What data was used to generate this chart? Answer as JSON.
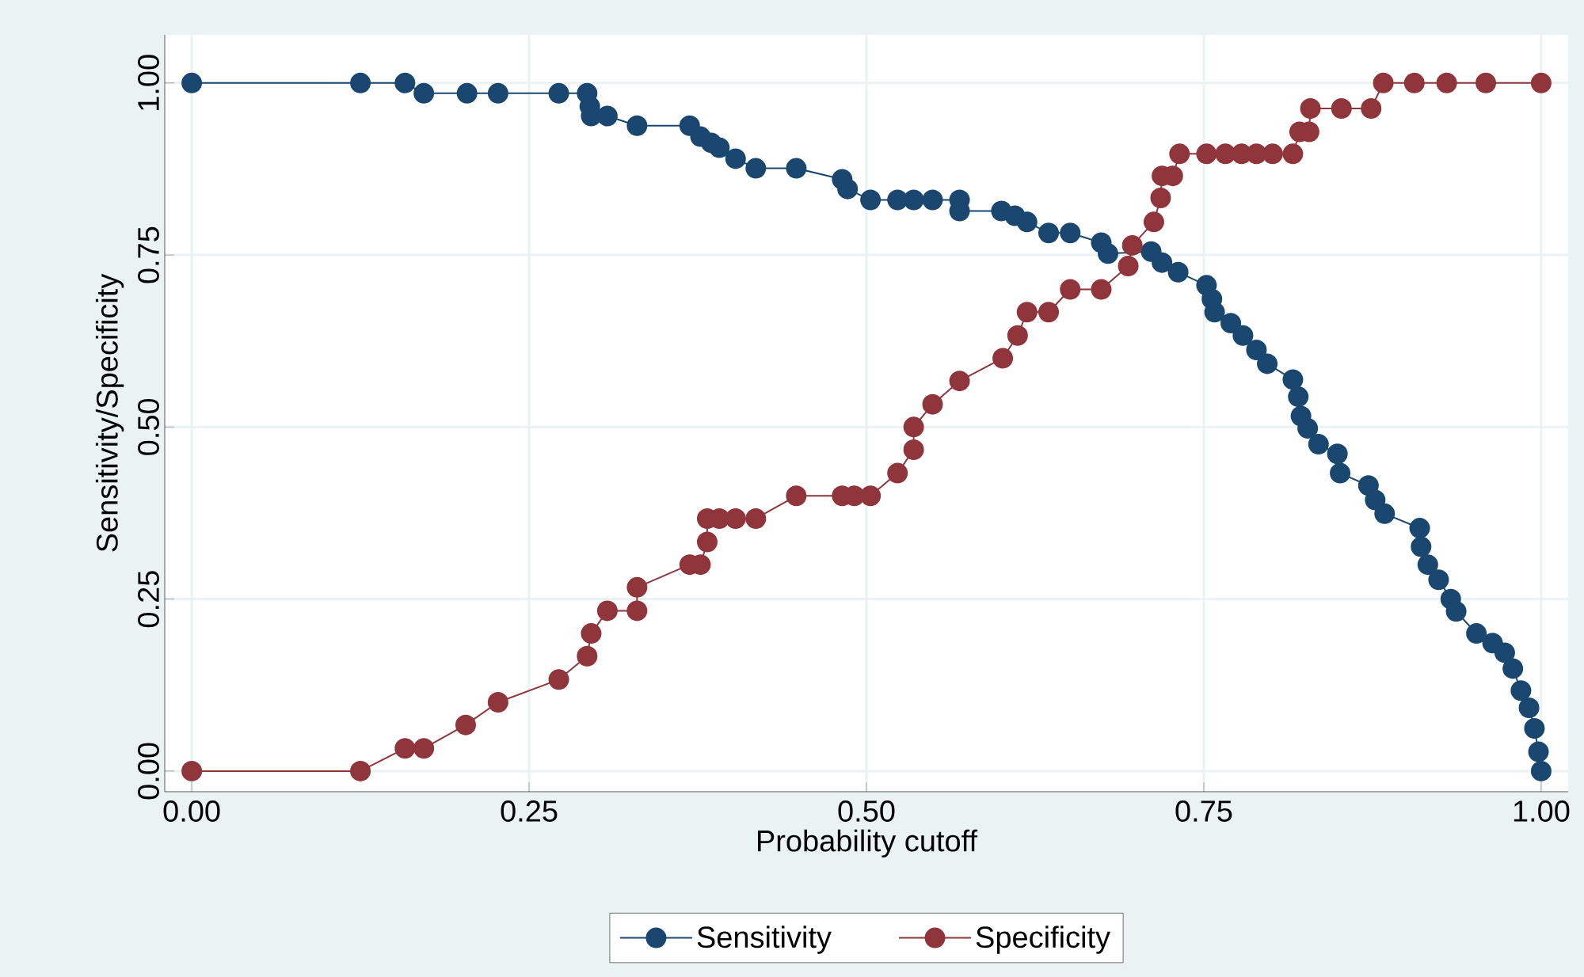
{
  "chart_data": {
    "type": "line",
    "xlabel": "Probability cutoff",
    "ylabel": "Sensitivity/Specificity",
    "xlim": [
      -0.02,
      1.02
    ],
    "ylim": [
      -0.03,
      1.07
    ],
    "xticks": [
      {
        "value": 0,
        "label": "0.00"
      },
      {
        "value": 0.25,
        "label": "0.25"
      },
      {
        "value": 0.5,
        "label": "0.50"
      },
      {
        "value": 0.75,
        "label": "0.75"
      },
      {
        "value": 1,
        "label": "1.00"
      }
    ],
    "yticks": [
      {
        "value": 0,
        "label": "0.00"
      },
      {
        "value": 0.25,
        "label": "0.25"
      },
      {
        "value": 0.5,
        "label": "0.50"
      },
      {
        "value": 0.75,
        "label": "0.75"
      },
      {
        "value": 1,
        "label": "1.00"
      }
    ],
    "grid": true,
    "legend": "bottom",
    "marker": "circle",
    "line_style": "solid",
    "series": [
      {
        "name": "Sensitivity",
        "color": "#1a476f",
        "x": [
          0,
          0.125,
          0.158,
          0.172,
          0.204,
          0.227,
          0.272,
          0.293,
          0.295,
          0.296,
          0.308,
          0.33,
          0.369,
          0.377,
          0.385,
          0.391,
          0.403,
          0.418,
          0.448,
          0.482,
          0.486,
          0.503,
          0.523,
          0.535,
          0.549,
          0.569,
          0.569,
          0.6,
          0.61,
          0.619,
          0.635,
          0.651,
          0.674,
          0.679,
          0.711,
          0.719,
          0.731,
          0.752,
          0.756,
          0.758,
          0.77,
          0.779,
          0.789,
          0.797,
          0.816,
          0.82,
          0.822,
          0.827,
          0.835,
          0.849,
          0.851,
          0.872,
          0.877,
          0.884,
          0.91,
          0.911,
          0.916,
          0.924,
          0.933,
          0.937,
          0.952,
          0.964,
          0.973,
          0.979,
          0.985,
          0.991,
          0.995,
          0.998,
          1.0
        ],
        "values": [
          1.0,
          1.0,
          1.0,
          0.985,
          0.985,
          0.985,
          0.985,
          0.985,
          0.966,
          0.952,
          0.952,
          0.938,
          0.938,
          0.922,
          0.913,
          0.906,
          0.89,
          0.876,
          0.876,
          0.86,
          0.846,
          0.83,
          0.83,
          0.83,
          0.83,
          0.83,
          0.814,
          0.814,
          0.807,
          0.798,
          0.782,
          0.782,
          0.768,
          0.752,
          0.755,
          0.739,
          0.725,
          0.706,
          0.686,
          0.667,
          0.651,
          0.633,
          0.612,
          0.592,
          0.569,
          0.544,
          0.516,
          0.498,
          0.475,
          0.461,
          0.433,
          0.415,
          0.394,
          0.374,
          0.353,
          0.326,
          0.3,
          0.278,
          0.25,
          0.232,
          0.2,
          0.186,
          0.172,
          0.149,
          0.117,
          0.092,
          0.062,
          0.028,
          0.0
        ]
      },
      {
        "name": "Specificity",
        "color": "#90353b",
        "x": [
          0,
          0.125,
          0.158,
          0.172,
          0.203,
          0.227,
          0.272,
          0.293,
          0.296,
          0.308,
          0.33,
          0.33,
          0.369,
          0.377,
          0.382,
          0.382,
          0.391,
          0.403,
          0.418,
          0.448,
          0.482,
          0.491,
          0.503,
          0.523,
          0.535,
          0.535,
          0.549,
          0.569,
          0.601,
          0.612,
          0.619,
          0.635,
          0.651,
          0.674,
          0.694,
          0.697,
          0.713,
          0.718,
          0.719,
          0.727,
          0.732,
          0.752,
          0.766,
          0.778,
          0.789,
          0.801,
          0.816,
          0.821,
          0.828,
          0.829,
          0.852,
          0.874,
          0.883,
          0.906,
          0.93,
          0.959,
          1.0
        ],
        "values": [
          0,
          0,
          0.033,
          0.033,
          0.067,
          0.1,
          0.133,
          0.167,
          0.2,
          0.233,
          0.233,
          0.267,
          0.3,
          0.3,
          0.333,
          0.367,
          0.367,
          0.367,
          0.367,
          0.4,
          0.4,
          0.4,
          0.4,
          0.433,
          0.467,
          0.5,
          0.533,
          0.567,
          0.6,
          0.633,
          0.667,
          0.667,
          0.7,
          0.7,
          0.734,
          0.764,
          0.798,
          0.833,
          0.865,
          0.865,
          0.897,
          0.897,
          0.897,
          0.897,
          0.897,
          0.897,
          0.897,
          0.929,
          0.929,
          0.963,
          0.963,
          0.963,
          1.0,
          1.0,
          1.0,
          1.0,
          1.0
        ]
      }
    ]
  }
}
